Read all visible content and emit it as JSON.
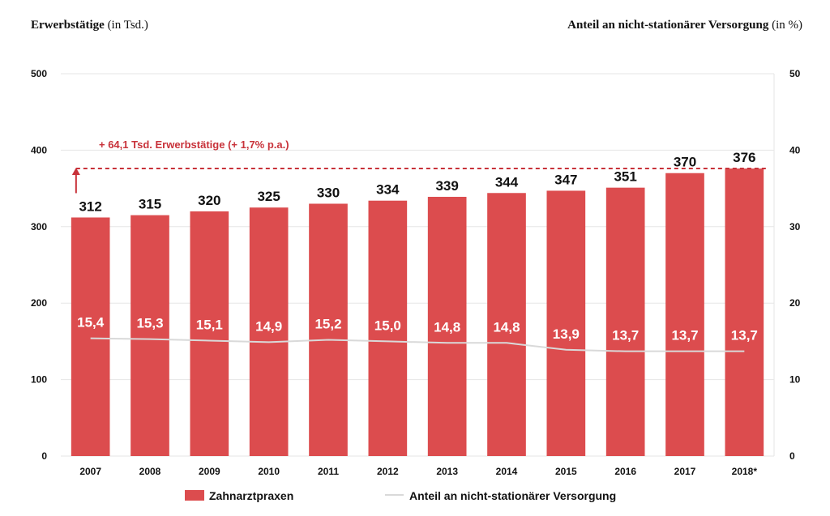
{
  "chart_data": {
    "type": "bar",
    "left_axis_title": "Erwerbstätige",
    "left_axis_unit": "(in Tsd.)",
    "right_axis_title": "Anteil an nicht-stationärer Versorgung",
    "right_axis_unit": "(in %)",
    "categories": [
      "2007",
      "2008",
      "2009",
      "2010",
      "2011",
      "2012",
      "2013",
      "2014",
      "2015",
      "2016",
      "2017",
      "2018*"
    ],
    "series": [
      {
        "name": "Zahnarztpraxen",
        "kind": "bar",
        "axis": "left",
        "values": [
          312,
          315,
          320,
          325,
          330,
          334,
          339,
          344,
          347,
          351,
          370,
          376
        ],
        "labels": [
          "312",
          "315",
          "320",
          "325",
          "330",
          "334",
          "339",
          "344",
          "347",
          "351",
          "370",
          "376"
        ]
      },
      {
        "name": "Anteil an nicht-stationärer Versorgung",
        "kind": "line",
        "axis": "right",
        "values": [
          15.4,
          15.3,
          15.1,
          14.9,
          15.2,
          15.0,
          14.8,
          14.8,
          13.9,
          13.7,
          13.7,
          13.7
        ],
        "labels": [
          "15,4",
          "15,3",
          "15,1",
          "14,9",
          "15,2",
          "15,0",
          "14,8",
          "14,8",
          "13,9",
          "13,7",
          "13,7",
          "13,7"
        ]
      }
    ],
    "left_axis": {
      "min": 0,
      "max": 500,
      "ticks": [
        "0",
        "100",
        "200",
        "300",
        "400",
        "500"
      ]
    },
    "right_axis": {
      "min": 0,
      "max": 50,
      "ticks": [
        "0",
        "10",
        "20",
        "30",
        "40",
        "50"
      ]
    },
    "annotation": {
      "text": "+ 64,1 Tsd. Erwerbstätige (+ 1,7% p.a.)",
      "from_value": 312,
      "to_value": 376
    },
    "grid": true,
    "legend_position": "bottom",
    "colors": {
      "bar": "#dc4c4e",
      "line": "#d9d9d9",
      "annotation": "#c8323a",
      "grid": "#e6e6e6"
    }
  }
}
